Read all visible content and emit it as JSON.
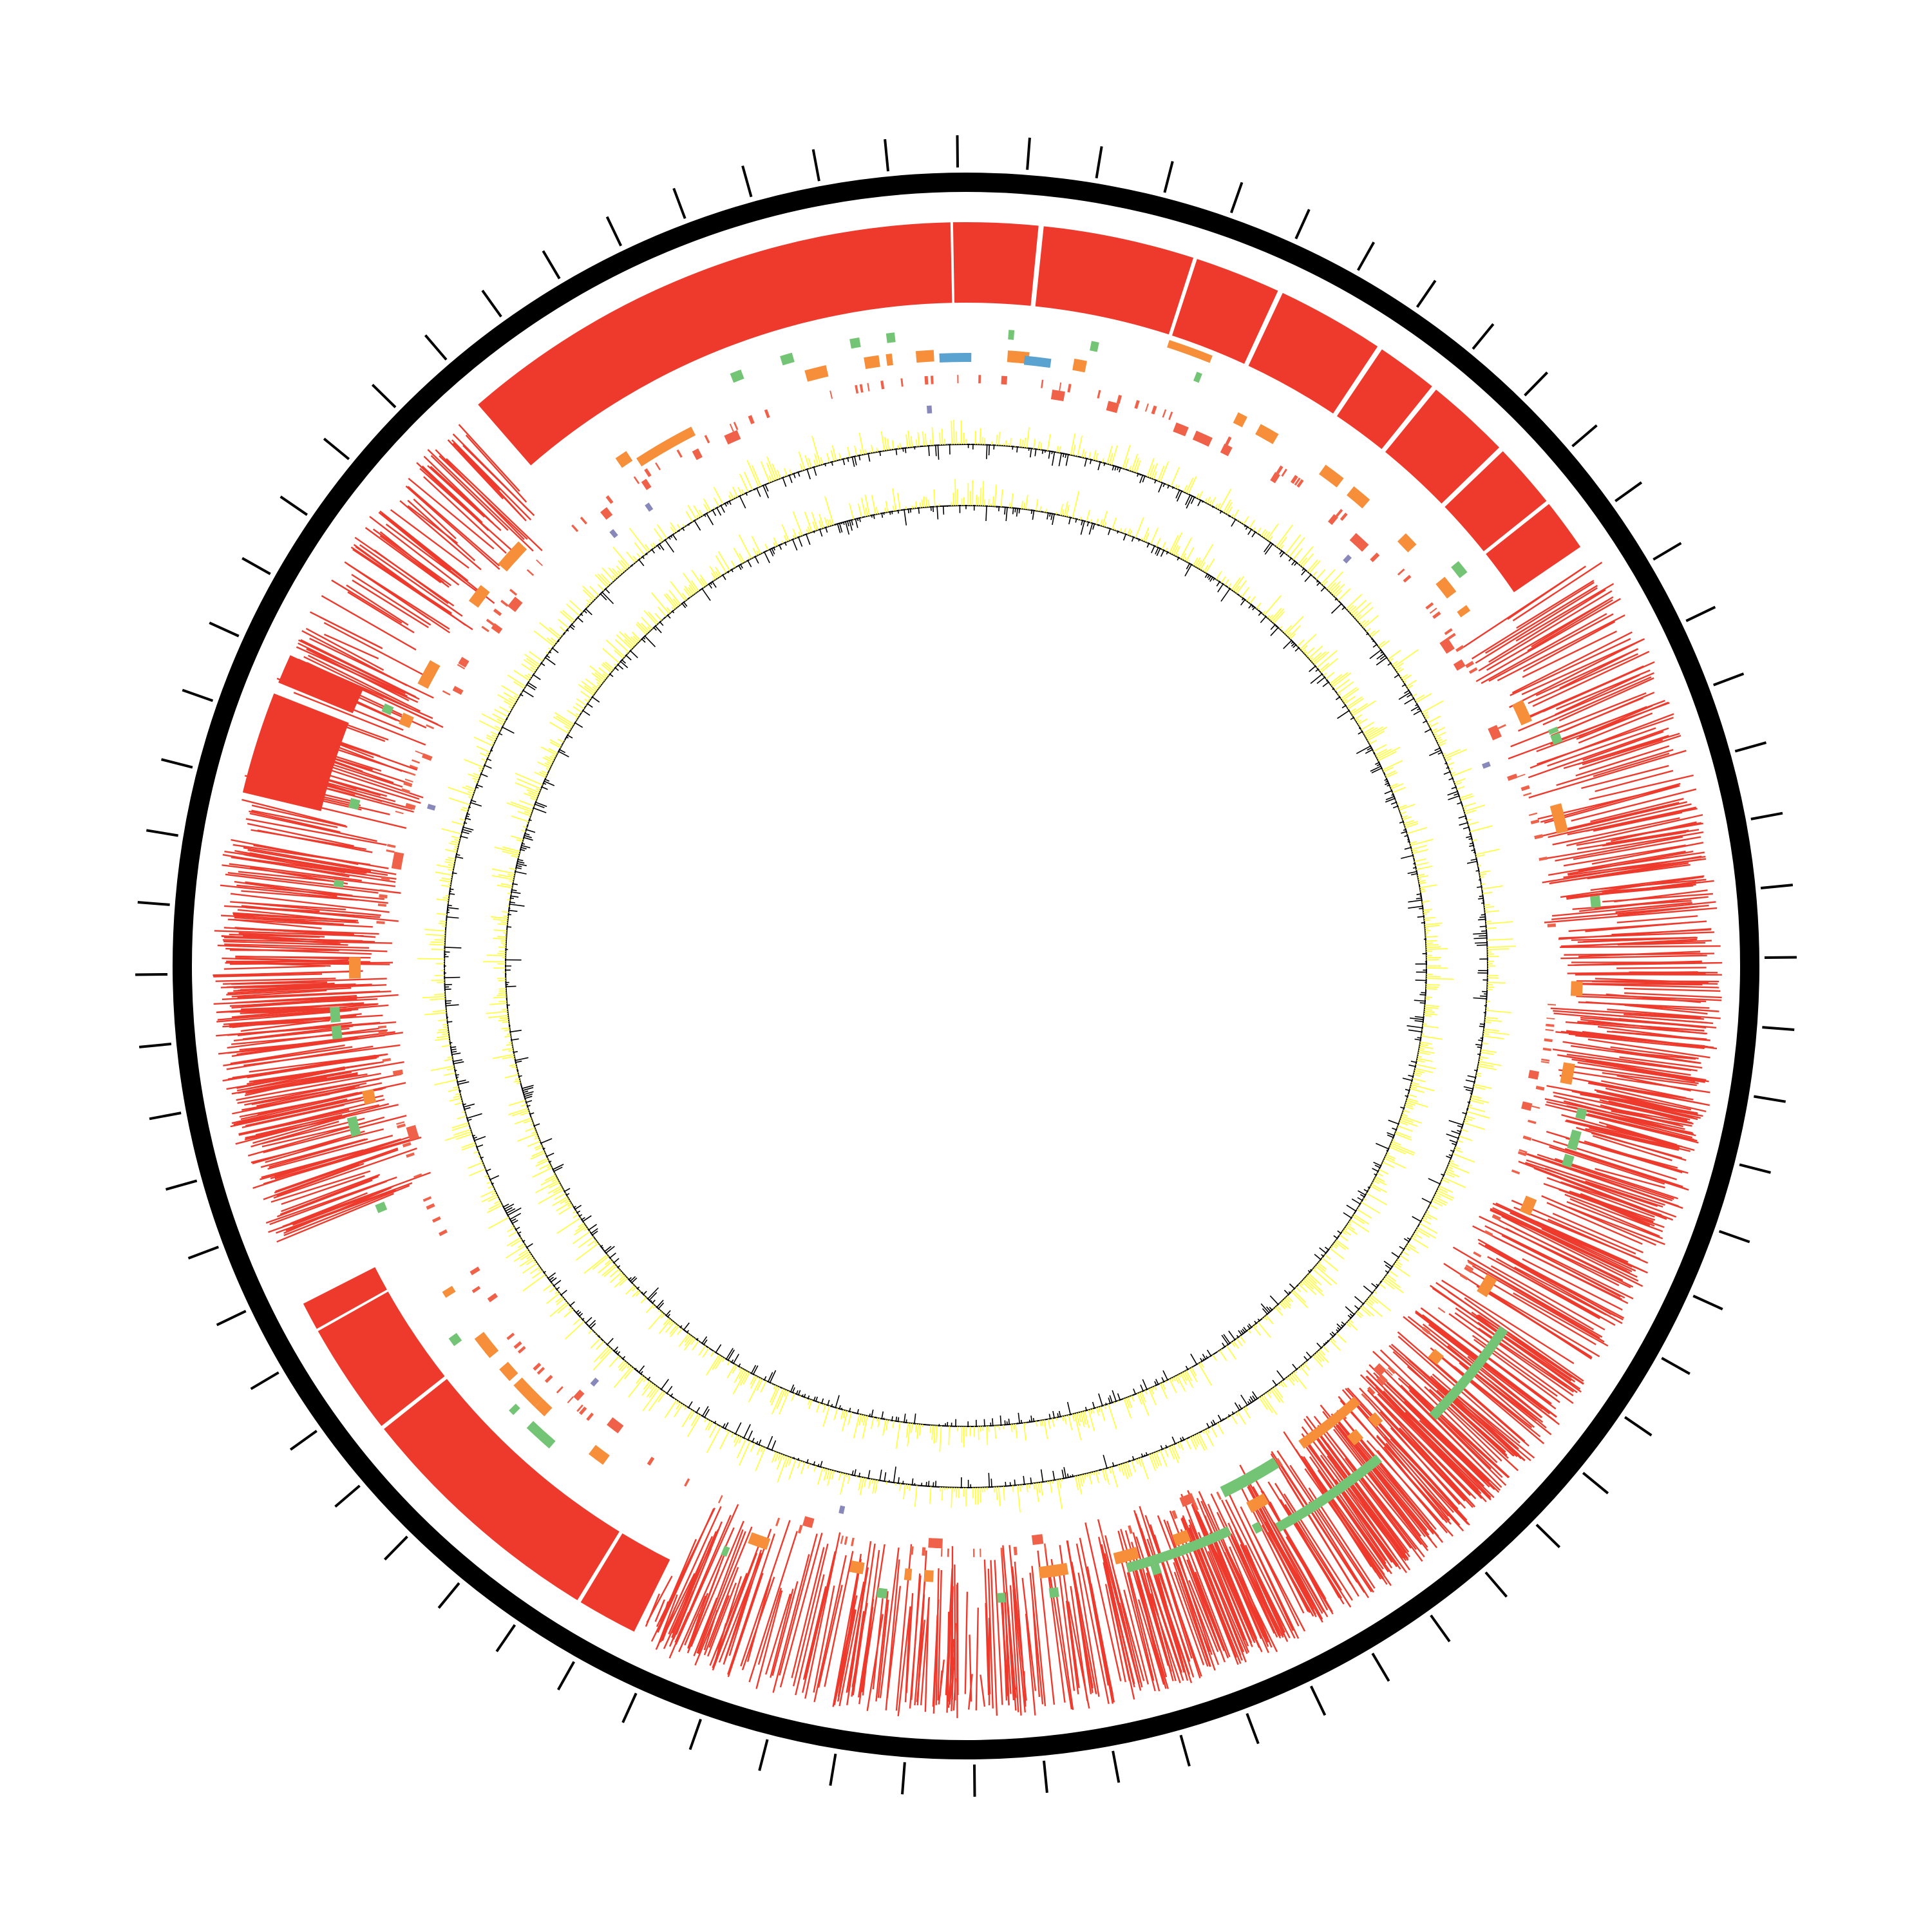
{
  "diagram": {
    "type": "circular-genome-map",
    "title": "",
    "labels_printed": false,
    "backbone_color": "#000000",
    "colors": {
      "blocks": "#ee3a2c",
      "features_green": "#74c476",
      "features_orange": "#f68e3a",
      "features_salmon": "#f0614a",
      "features_blue": "#5aa2d0",
      "features_purple": "#8888bb",
      "signal_positive": "#ffff33",
      "signal_negative": "#000000"
    },
    "tracks": [
      {
        "name": "ticks",
        "kind": "ticks",
        "count": 72
      },
      {
        "name": "backbone",
        "kind": "ring"
      },
      {
        "name": "synteny-blocks",
        "kind": "blocks"
      },
      {
        "name": "feature-track-1",
        "kind": "features"
      },
      {
        "name": "feature-track-2",
        "kind": "features"
      },
      {
        "name": "feature-track-3",
        "kind": "features"
      },
      {
        "name": "gc-skew",
        "kind": "histogram"
      },
      {
        "name": "gc-content",
        "kind": "histogram"
      }
    ]
  }
}
